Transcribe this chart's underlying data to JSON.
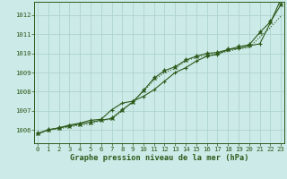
{
  "x": [
    0,
    1,
    2,
    3,
    4,
    5,
    6,
    7,
    8,
    9,
    10,
    11,
    12,
    13,
    14,
    15,
    16,
    17,
    18,
    19,
    20,
    21,
    22,
    23
  ],
  "line1": [
    1005.8,
    1006.0,
    1006.1,
    1006.2,
    1006.3,
    1006.4,
    1006.5,
    1006.6,
    1007.05,
    1007.45,
    1008.05,
    1008.7,
    1009.1,
    1009.3,
    1009.65,
    1009.85,
    1010.0,
    1010.05,
    1010.2,
    1010.35,
    1010.45,
    1011.1,
    1011.65,
    1012.55
  ],
  "line2": [
    1005.8,
    1006.0,
    1006.1,
    1006.25,
    1006.35,
    1006.5,
    1006.55,
    1007.05,
    1007.4,
    1007.5,
    1007.75,
    1008.1,
    1008.55,
    1009.0,
    1009.25,
    1009.6,
    1009.85,
    1009.95,
    1010.2,
    1010.25,
    1010.4,
    1010.5,
    1011.6,
    1012.85
  ],
  "line3": [
    1005.75,
    1006.0,
    1006.05,
    1006.15,
    1006.25,
    1006.3,
    1006.5,
    1006.55,
    1007.0,
    1007.5,
    1008.0,
    1008.6,
    1009.0,
    1009.2,
    1009.6,
    1009.8,
    1009.9,
    1010.0,
    1010.1,
    1010.25,
    1010.3,
    1010.85,
    1011.35,
    1011.95
  ],
  "bg_color": "#cceae7",
  "line_color": "#2d5a1b",
  "grid_color": "#aed4d0",
  "label_color": "#2d5a1b",
  "xlabel": "Graphe pression niveau de la mer (hPa)",
  "ylim": [
    1005.3,
    1012.7
  ],
  "yticks": [
    1006,
    1007,
    1008,
    1009,
    1010,
    1011,
    1012
  ],
  "xticks": [
    0,
    1,
    2,
    3,
    4,
    5,
    6,
    7,
    8,
    9,
    10,
    11,
    12,
    13,
    14,
    15,
    16,
    17,
    18,
    19,
    20,
    21,
    22,
    23
  ],
  "tick_fontsize": 5.2,
  "xlabel_fontsize": 6.2
}
